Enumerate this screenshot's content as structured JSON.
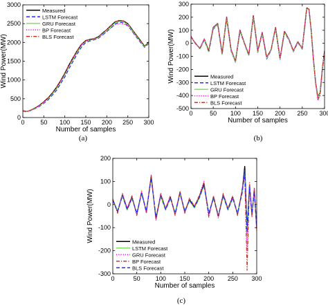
{
  "chart_data": [
    {
      "panel": "(a)",
      "type": "line",
      "xlabel": "Number of samples",
      "ylabel": "Wind Power(MW)",
      "xlim": [
        0,
        300
      ],
      "ylim": [
        0,
        3000
      ],
      "xticks": [
        0,
        50,
        100,
        150,
        200,
        250,
        300
      ],
      "yticks": [
        0,
        500,
        1000,
        1500,
        2000,
        2500,
        3000
      ],
      "grid": false,
      "legend_position": "top-left",
      "x": [
        0,
        10,
        20,
        30,
        40,
        50,
        60,
        70,
        80,
        90,
        100,
        110,
        120,
        130,
        140,
        150,
        160,
        170,
        180,
        190,
        200,
        210,
        220,
        230,
        240,
        250,
        260,
        270,
        280,
        290,
        300
      ],
      "series": [
        {
          "name": "Measured",
          "color": "#000000",
          "dash": "solid",
          "values": [
            180,
            160,
            200,
            260,
            330,
            420,
            520,
            650,
            800,
            980,
            1180,
            1400,
            1600,
            1790,
            1950,
            2050,
            2080,
            2100,
            2150,
            2250,
            2340,
            2450,
            2550,
            2580,
            2570,
            2500,
            2350,
            2200,
            2050,
            1900,
            2000
          ]
        },
        {
          "name": "LSTM Forecast",
          "color": "#1f2bff",
          "dash": "dashed",
          "values": [
            170,
            150,
            190,
            240,
            300,
            380,
            470,
            590,
            720,
            900,
            1080,
            1300,
            1500,
            1700,
            1880,
            2000,
            2040,
            2070,
            2110,
            2200,
            2290,
            2390,
            2490,
            2540,
            2520,
            2450,
            2300,
            2150,
            2000,
            1870,
            1970
          ]
        },
        {
          "name": "GRU Forecast",
          "color": "#7ee35f",
          "dash": "solid",
          "values": [
            175,
            155,
            195,
            250,
            315,
            400,
            495,
            620,
            760,
            940,
            1130,
            1350,
            1550,
            1745,
            1915,
            2025,
            2060,
            2085,
            2130,
            2225,
            2315,
            2420,
            2520,
            2560,
            2545,
            2475,
            2325,
            2175,
            2025,
            1885,
            1985
          ]
        },
        {
          "name": "BP Forecast",
          "color": "#ff00ff",
          "dash": "dotted",
          "values": [
            178,
            158,
            198,
            255,
            322,
            410,
            505,
            635,
            780,
            960,
            1155,
            1375,
            1575,
            1765,
            1930,
            2035,
            2065,
            2080,
            2120,
            2210,
            2280,
            2380,
            2470,
            2500,
            2490,
            2440,
            2300,
            2160,
            2020,
            1880,
            1980
          ]
        },
        {
          "name": "BLS Forecast",
          "color": "#c0392b",
          "dash": "dashdot",
          "values": [
            182,
            162,
            202,
            262,
            332,
            422,
            522,
            652,
            802,
            982,
            1182,
            1402,
            1602,
            1792,
            1952,
            2052,
            2082,
            2102,
            2152,
            2252,
            2342,
            2452,
            2552,
            2582,
            2572,
            2502,
            2352,
            2202,
            2052,
            1902,
            2002
          ]
        }
      ]
    },
    {
      "panel": "(b)",
      "type": "line",
      "xlabel": "Number of samples",
      "ylabel": "Wind Power(MW)",
      "xlim": [
        0,
        300
      ],
      "ylim": [
        -500,
        300
      ],
      "xticks": [
        0,
        50,
        100,
        150,
        200,
        250,
        300
      ],
      "yticks": [
        -500,
        -400,
        -300,
        -200,
        -100,
        0,
        100,
        200,
        300
      ],
      "grid": false,
      "legend_position": "bottom-left",
      "x": [
        0,
        10,
        20,
        30,
        40,
        50,
        60,
        70,
        80,
        90,
        100,
        110,
        120,
        130,
        140,
        150,
        160,
        170,
        180,
        190,
        200,
        210,
        220,
        230,
        240,
        250,
        260,
        265,
        270,
        275,
        280,
        285,
        290,
        295,
        300
      ],
      "series": [
        {
          "name": "Measured",
          "color": "#000000",
          "dash": "solid",
          "values": [
            50,
            0,
            -40,
            30,
            -60,
            120,
            150,
            -80,
            200,
            -50,
            -140,
            100,
            0,
            -90,
            210,
            -60,
            80,
            -110,
            -50,
            120,
            -120,
            90,
            30,
            -60,
            10,
            -40,
            270,
            260,
            100,
            -120,
            -300,
            -410,
            -380,
            -200,
            -60
          ]
        },
        {
          "name": "LSTM Forecast",
          "color": "#1f2bff",
          "dash": "dashed",
          "values": [
            45,
            5,
            -45,
            25,
            -70,
            110,
            140,
            -90,
            190,
            -60,
            -145,
            90,
            -5,
            -95,
            200,
            -70,
            70,
            -120,
            -55,
            110,
            -125,
            80,
            25,
            -65,
            5,
            -45,
            260,
            255,
            110,
            -110,
            -290,
            -420,
            -390,
            -210,
            -70
          ]
        },
        {
          "name": "GRU Forecast",
          "color": "#7ee35f",
          "dash": "solid",
          "values": [
            48,
            2,
            -42,
            28,
            -65,
            115,
            145,
            -85,
            195,
            -55,
            -142,
            95,
            -2,
            -92,
            205,
            -65,
            75,
            -115,
            -52,
            115,
            -122,
            85,
            28,
            -62,
            8,
            -42,
            265,
            258,
            105,
            -115,
            -295,
            -415,
            -385,
            -205,
            -65
          ]
        },
        {
          "name": "BP Forecast",
          "color": "#ff00ff",
          "dash": "dotted",
          "values": [
            55,
            -5,
            -35,
            35,
            -55,
            125,
            155,
            -75,
            205,
            -45,
            -135,
            105,
            5,
            -85,
            215,
            -55,
            85,
            -105,
            -45,
            125,
            -115,
            95,
            35,
            -55,
            15,
            -35,
            275,
            262,
            95,
            -125,
            -305,
            -440,
            -400,
            -190,
            -55
          ]
        },
        {
          "name": "BLS Forecast",
          "color": "#c0392b",
          "dash": "dashdot",
          "values": [
            52,
            -2,
            -38,
            32,
            -58,
            122,
            152,
            -78,
            202,
            -48,
            -138,
            102,
            2,
            -88,
            212,
            -58,
            82,
            -108,
            -48,
            122,
            -118,
            92,
            32,
            -58,
            12,
            -38,
            272,
            262,
            98,
            -122,
            -302,
            -430,
            -395,
            -195,
            -58
          ]
        }
      ]
    },
    {
      "panel": "(c)",
      "type": "line",
      "xlabel": "Number of samples",
      "ylabel": "Wind Power(MW)",
      "xlim": [
        0,
        300
      ],
      "ylim": [
        -300,
        200
      ],
      "xticks": [
        0,
        50,
        100,
        150,
        200,
        250,
        300
      ],
      "yticks": [
        -300,
        -200,
        -100,
        0,
        100,
        200
      ],
      "grid": false,
      "legend_position": "bottom-left",
      "x": [
        0,
        10,
        20,
        30,
        40,
        50,
        60,
        70,
        80,
        90,
        100,
        110,
        120,
        130,
        140,
        150,
        160,
        170,
        180,
        190,
        200,
        210,
        220,
        230,
        240,
        250,
        260,
        270,
        275,
        280,
        285,
        290,
        295,
        300
      ],
      "series": [
        {
          "name": "Measured",
          "color": "#000000",
          "dash": "solid",
          "values": [
            20,
            -30,
            40,
            -20,
            30,
            -40,
            50,
            -30,
            120,
            -60,
            40,
            -20,
            30,
            -40,
            50,
            -30,
            20,
            -10,
            30,
            90,
            -40,
            30,
            -50,
            40,
            -20,
            30,
            -40,
            60,
            165,
            -110,
            80,
            -40,
            60,
            -100
          ]
        },
        {
          "name": "LSTM Forecast",
          "color": "#7ee35f",
          "dash": "solid",
          "values": [
            15,
            -25,
            35,
            -25,
            25,
            -35,
            45,
            -25,
            110,
            -50,
            35,
            -25,
            25,
            -35,
            45,
            -25,
            15,
            -15,
            25,
            80,
            -35,
            25,
            -45,
            35,
            -25,
            25,
            -35,
            50,
            140,
            -130,
            70,
            -35,
            50,
            -90
          ]
        },
        {
          "name": "GRU Forecast",
          "color": "#ff00ff",
          "dash": "dotted",
          "values": [
            22,
            -35,
            45,
            -15,
            35,
            -45,
            55,
            -35,
            130,
            -70,
            45,
            -15,
            35,
            -45,
            55,
            -35,
            25,
            -5,
            35,
            100,
            -50,
            35,
            -55,
            45,
            -15,
            35,
            -45,
            70,
            130,
            -200,
            90,
            -50,
            70,
            -110
          ]
        },
        {
          "name": "BP Forecast",
          "color": "#c0392b",
          "dash": "dashdot",
          "values": [
            25,
            -38,
            48,
            -18,
            38,
            -48,
            58,
            -38,
            125,
            -65,
            48,
            -18,
            38,
            -48,
            58,
            -38,
            28,
            -8,
            38,
            95,
            -55,
            38,
            -58,
            48,
            -18,
            38,
            -48,
            72,
            120,
            -285,
            95,
            -55,
            75,
            -115
          ]
        },
        {
          "name": "BLS Forecast",
          "color": "#1f2bff",
          "dash": "dashed",
          "values": [
            18,
            -28,
            38,
            -22,
            28,
            -38,
            48,
            -28,
            115,
            -55,
            38,
            -22,
            28,
            -38,
            48,
            -28,
            18,
            -12,
            28,
            85,
            -38,
            28,
            -48,
            38,
            -22,
            28,
            -38,
            55,
            150,
            -120,
            75,
            -38,
            55,
            -95
          ]
        }
      ]
    }
  ]
}
